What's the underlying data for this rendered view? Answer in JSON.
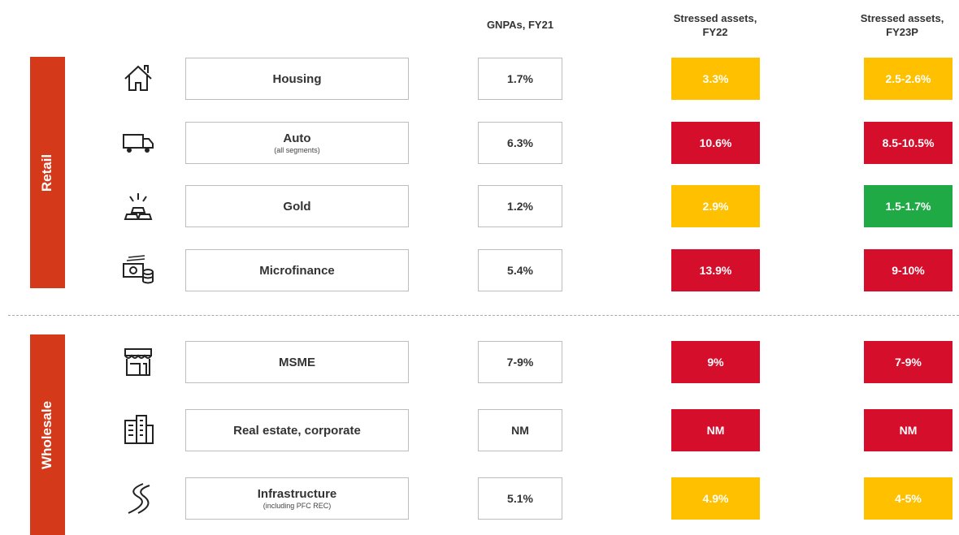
{
  "header": {
    "gnpa": "GNPAs, FY21",
    "fy22": "Stressed assets,\nFY22",
    "fy23": "Stressed assets,\nFY23P"
  },
  "groups": [
    {
      "name": "Retail",
      "rows": [
        {
          "label": "Housing",
          "gnpa": "1.7%",
          "fy22": {
            "value": "3.3%",
            "color": "#ffc000"
          },
          "fy23": {
            "value": "2.5-2.6%",
            "color": "#ffc000"
          }
        },
        {
          "label": "Auto",
          "note": "(all segments)",
          "gnpa": "6.3%",
          "fy22": {
            "value": "10.6%",
            "color": "#d50e2c"
          },
          "fy23": {
            "value": "8.5-10.5%",
            "color": "#d50e2c"
          }
        },
        {
          "label": "Gold",
          "gnpa": "1.2%",
          "fy22": {
            "value": "2.9%",
            "color": "#ffc000"
          },
          "fy23": {
            "value": "1.5-1.7%",
            "color": "#1faa45"
          }
        },
        {
          "label": "Microfinance",
          "gnpa": "5.4%",
          "fy22": {
            "value": "13.9%",
            "color": "#d50e2c"
          },
          "fy23": {
            "value": "9-10%",
            "color": "#d50e2c"
          }
        }
      ]
    },
    {
      "name": "Wholesale",
      "rows": [
        {
          "label": "MSME",
          "gnpa": "7-9%",
          "fy22": {
            "value": "9%",
            "color": "#d50e2c"
          },
          "fy23": {
            "value": "7-9%",
            "color": "#d50e2c"
          }
        },
        {
          "label": "Real estate, corporate",
          "gnpa": "NM",
          "fy22": {
            "value": "NM",
            "color": "#d50e2c"
          },
          "fy23": {
            "value": "NM",
            "color": "#d50e2c"
          }
        },
        {
          "label": "Infrastructure",
          "note": "(including PFC REC)",
          "gnpa": "5.1%",
          "fy22": {
            "value": "4.9%",
            "color": "#ffc000"
          },
          "fy23": {
            "value": "4-5%",
            "color": "#ffc000"
          }
        }
      ]
    }
  ]
}
